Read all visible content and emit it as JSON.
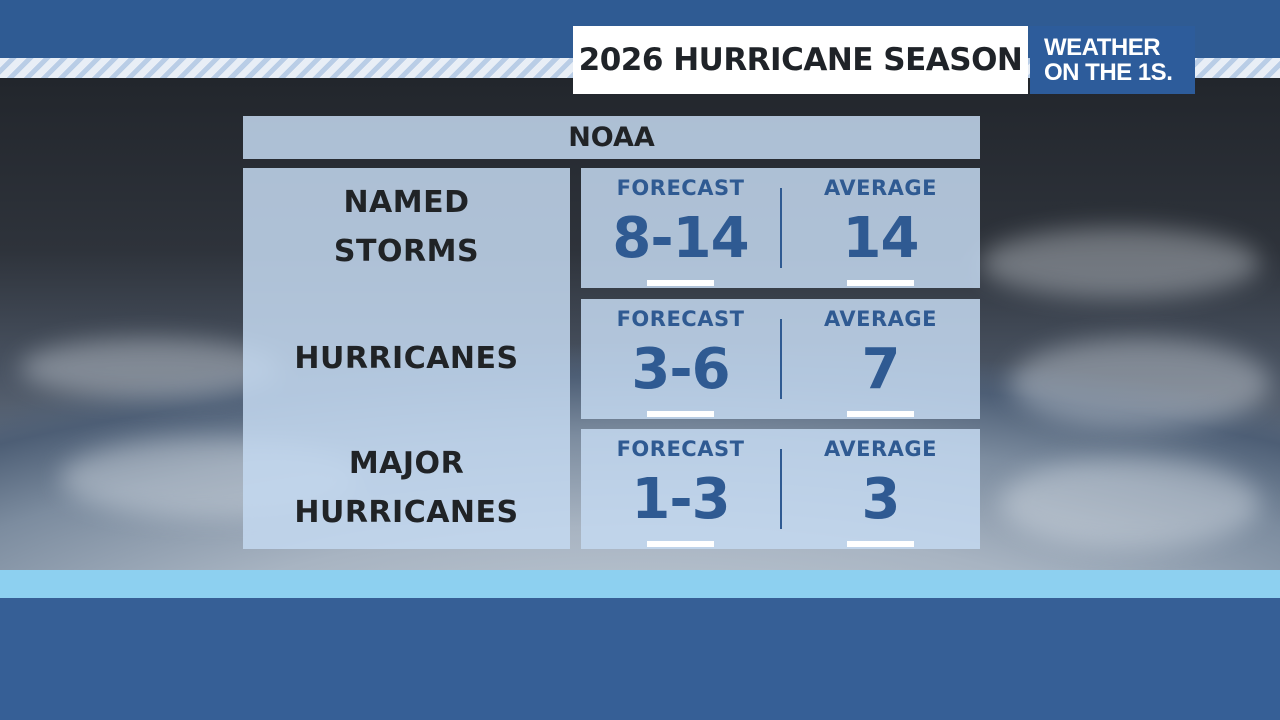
{
  "header": {
    "title": "2026 HURRICANE SEASON",
    "logo_line1": "WEATHER",
    "logo_line2": "ON THE 1S."
  },
  "table": {
    "source": "NOAA",
    "rows": [
      {
        "label_line1": "NAMED",
        "label_line2": "STORMS",
        "forecast_label": "FORECAST",
        "forecast": "8-14",
        "average_label": "AVERAGE",
        "average": "14"
      },
      {
        "label_line1": "HURRICANES",
        "label_line2": "",
        "forecast_label": "FORECAST",
        "forecast": "3-6",
        "average_label": "AVERAGE",
        "average": "7"
      },
      {
        "label_line1": "MAJOR",
        "label_line2": "HURRICANES",
        "forecast_label": "FORECAST",
        "forecast": "1-3",
        "average_label": "AVERAGE",
        "average": "3"
      }
    ]
  },
  "colors": {
    "brand_blue": "#2d5c9b",
    "accent_light_blue": "#8dd0f0",
    "value_text": "#2f5a92"
  }
}
